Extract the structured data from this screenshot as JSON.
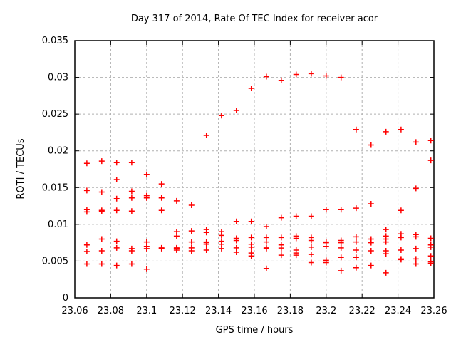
{
  "chart_data": {
    "type": "scatter",
    "title": "Day 317 of 2014, Rate Of TEC Index for receiver acor",
    "xlabel": "GPS time / hours",
    "ylabel": "ROTI / TECUs",
    "xlim": [
      23.06,
      23.26
    ],
    "ylim": [
      0,
      0.035
    ],
    "xticks": [
      23.06,
      23.08,
      23.1,
      23.12,
      23.14,
      23.16,
      23.18,
      23.2,
      23.22,
      23.24,
      23.26
    ],
    "xtick_labels": [
      "23.06",
      "23.08",
      "23.1",
      "23.12",
      "23.14",
      "23.16",
      "23.18",
      "23.2",
      "23.22",
      "23.24",
      "23.26"
    ],
    "yticks": [
      0,
      0.005,
      0.01,
      0.015,
      0.02,
      0.025,
      0.03,
      0.035
    ],
    "ytick_labels": [
      "0",
      "0.005",
      "0.01",
      "0.015",
      "0.02",
      "0.025",
      "0.03",
      "0.035"
    ],
    "grid": true,
    "legend": "none",
    "grid_color": "#b0b0b0",
    "axis_color": "#000000",
    "text_color": "#000000",
    "background_color": "#ffffff",
    "series": [
      {
        "name": "ROTI",
        "marker": "plus",
        "color": "#ff0000",
        "points": [
          [
            23.0667,
            0.0183
          ],
          [
            23.0667,
            0.0146
          ],
          [
            23.0667,
            0.012
          ],
          [
            23.0667,
            0.0117
          ],
          [
            23.0667,
            0.0072
          ],
          [
            23.0667,
            0.0063
          ],
          [
            23.0667,
            0.0046
          ],
          [
            23.075,
            0.0186
          ],
          [
            23.075,
            0.0144
          ],
          [
            23.075,
            0.0119
          ],
          [
            23.075,
            0.0118
          ],
          [
            23.075,
            0.008
          ],
          [
            23.075,
            0.0064
          ],
          [
            23.075,
            0.0046
          ],
          [
            23.0833,
            0.0184
          ],
          [
            23.0833,
            0.0161
          ],
          [
            23.0833,
            0.0135
          ],
          [
            23.0833,
            0.0119
          ],
          [
            23.0833,
            0.0077
          ],
          [
            23.0833,
            0.0068
          ],
          [
            23.0833,
            0.0044
          ],
          [
            23.0917,
            0.0184
          ],
          [
            23.0917,
            0.0145
          ],
          [
            23.0917,
            0.0136
          ],
          [
            23.0917,
            0.0118
          ],
          [
            23.0917,
            0.0067
          ],
          [
            23.0917,
            0.0064
          ],
          [
            23.0917,
            0.0046
          ],
          [
            23.1,
            0.0168
          ],
          [
            23.1,
            0.0139
          ],
          [
            23.1,
            0.0136
          ],
          [
            23.1,
            0.0076
          ],
          [
            23.1,
            0.007
          ],
          [
            23.1,
            0.0067
          ],
          [
            23.1,
            0.0039
          ],
          [
            23.1083,
            0.0155
          ],
          [
            23.1083,
            0.0136
          ],
          [
            23.1083,
            0.0119
          ],
          [
            23.1083,
            0.0068
          ],
          [
            23.1083,
            0.0067
          ],
          [
            23.1167,
            0.0132
          ],
          [
            23.1167,
            0.009
          ],
          [
            23.1167,
            0.0084
          ],
          [
            23.1167,
            0.0068
          ],
          [
            23.1167,
            0.0067
          ],
          [
            23.1167,
            0.0065
          ],
          [
            23.125,
            0.0126
          ],
          [
            23.125,
            0.0091
          ],
          [
            23.125,
            0.0076
          ],
          [
            23.125,
            0.0068
          ],
          [
            23.125,
            0.0064
          ],
          [
            23.1333,
            0.0221
          ],
          [
            23.1333,
            0.0093
          ],
          [
            23.1333,
            0.0089
          ],
          [
            23.1333,
            0.0076
          ],
          [
            23.1333,
            0.0075
          ],
          [
            23.1333,
            0.0073
          ],
          [
            23.1333,
            0.0065
          ],
          [
            23.1417,
            0.0248
          ],
          [
            23.1417,
            0.009
          ],
          [
            23.1417,
            0.0085
          ],
          [
            23.1417,
            0.0077
          ],
          [
            23.1417,
            0.0073
          ],
          [
            23.1417,
            0.0067
          ],
          [
            23.15,
            0.0255
          ],
          [
            23.15,
            0.0104
          ],
          [
            23.15,
            0.0081
          ],
          [
            23.15,
            0.0078
          ],
          [
            23.15,
            0.0068
          ],
          [
            23.15,
            0.0062
          ],
          [
            23.1583,
            0.0285
          ],
          [
            23.1583,
            0.0104
          ],
          [
            23.1583,
            0.0082
          ],
          [
            23.1583,
            0.0073
          ],
          [
            23.1583,
            0.0069
          ],
          [
            23.1583,
            0.0061
          ],
          [
            23.1583,
            0.0057
          ],
          [
            23.1667,
            0.0301
          ],
          [
            23.1667,
            0.0097
          ],
          [
            23.1667,
            0.0082
          ],
          [
            23.1667,
            0.0076
          ],
          [
            23.1667,
            0.0068
          ],
          [
            23.1667,
            0.0067
          ],
          [
            23.1667,
            0.004
          ],
          [
            23.175,
            0.0296
          ],
          [
            23.175,
            0.0109
          ],
          [
            23.175,
            0.0082
          ],
          [
            23.175,
            0.0072
          ],
          [
            23.175,
            0.0069
          ],
          [
            23.175,
            0.0067
          ],
          [
            23.175,
            0.0058
          ],
          [
            23.1833,
            0.0304
          ],
          [
            23.1833,
            0.0111
          ],
          [
            23.1833,
            0.0084
          ],
          [
            23.1833,
            0.0081
          ],
          [
            23.1833,
            0.0065
          ],
          [
            23.1833,
            0.0061
          ],
          [
            23.1833,
            0.0058
          ],
          [
            23.1917,
            0.0305
          ],
          [
            23.1917,
            0.0111
          ],
          [
            23.1917,
            0.0082
          ],
          [
            23.1917,
            0.0078
          ],
          [
            23.1917,
            0.0069
          ],
          [
            23.1917,
            0.0059
          ],
          [
            23.1917,
            0.0048
          ],
          [
            23.2,
            0.0302
          ],
          [
            23.2,
            0.012
          ],
          [
            23.2,
            0.0076
          ],
          [
            23.2,
            0.0075
          ],
          [
            23.2,
            0.007
          ],
          [
            23.2,
            0.0051
          ],
          [
            23.2,
            0.0048
          ],
          [
            23.2083,
            0.03
          ],
          [
            23.2083,
            0.012
          ],
          [
            23.2083,
            0.0078
          ],
          [
            23.2083,
            0.0075
          ],
          [
            23.2083,
            0.0068
          ],
          [
            23.2083,
            0.0055
          ],
          [
            23.2083,
            0.0037
          ],
          [
            23.2167,
            0.0229
          ],
          [
            23.2167,
            0.0122
          ],
          [
            23.2167,
            0.0083
          ],
          [
            23.2167,
            0.0076
          ],
          [
            23.2167,
            0.0065
          ],
          [
            23.2167,
            0.0055
          ],
          [
            23.2167,
            0.0041
          ],
          [
            23.225,
            0.0208
          ],
          [
            23.225,
            0.0128
          ],
          [
            23.225,
            0.008
          ],
          [
            23.225,
            0.0075
          ],
          [
            23.225,
            0.0064
          ],
          [
            23.225,
            0.0044
          ],
          [
            23.2333,
            0.0226
          ],
          [
            23.2333,
            0.0093
          ],
          [
            23.2333,
            0.0084
          ],
          [
            23.2333,
            0.008
          ],
          [
            23.2333,
            0.0076
          ],
          [
            23.2333,
            0.0064
          ],
          [
            23.2333,
            0.006
          ],
          [
            23.2333,
            0.0034
          ],
          [
            23.2417,
            0.0229
          ],
          [
            23.2417,
            0.0119
          ],
          [
            23.2417,
            0.0087
          ],
          [
            23.2417,
            0.0082
          ],
          [
            23.2417,
            0.0065
          ],
          [
            23.2417,
            0.0053
          ],
          [
            23.2417,
            0.0052
          ],
          [
            23.25,
            0.0212
          ],
          [
            23.25,
            0.0149
          ],
          [
            23.25,
            0.0086
          ],
          [
            23.25,
            0.0083
          ],
          [
            23.25,
            0.0067
          ],
          [
            23.25,
            0.0053
          ],
          [
            23.25,
            0.0046
          ],
          [
            23.2583,
            0.0214
          ],
          [
            23.2583,
            0.0187
          ],
          [
            23.2583,
            0.0081
          ],
          [
            23.2583,
            0.0072
          ],
          [
            23.2583,
            0.0069
          ],
          [
            23.2583,
            0.0057
          ],
          [
            23.2583,
            0.0049
          ],
          [
            23.2583,
            0.0047
          ]
        ]
      }
    ]
  }
}
